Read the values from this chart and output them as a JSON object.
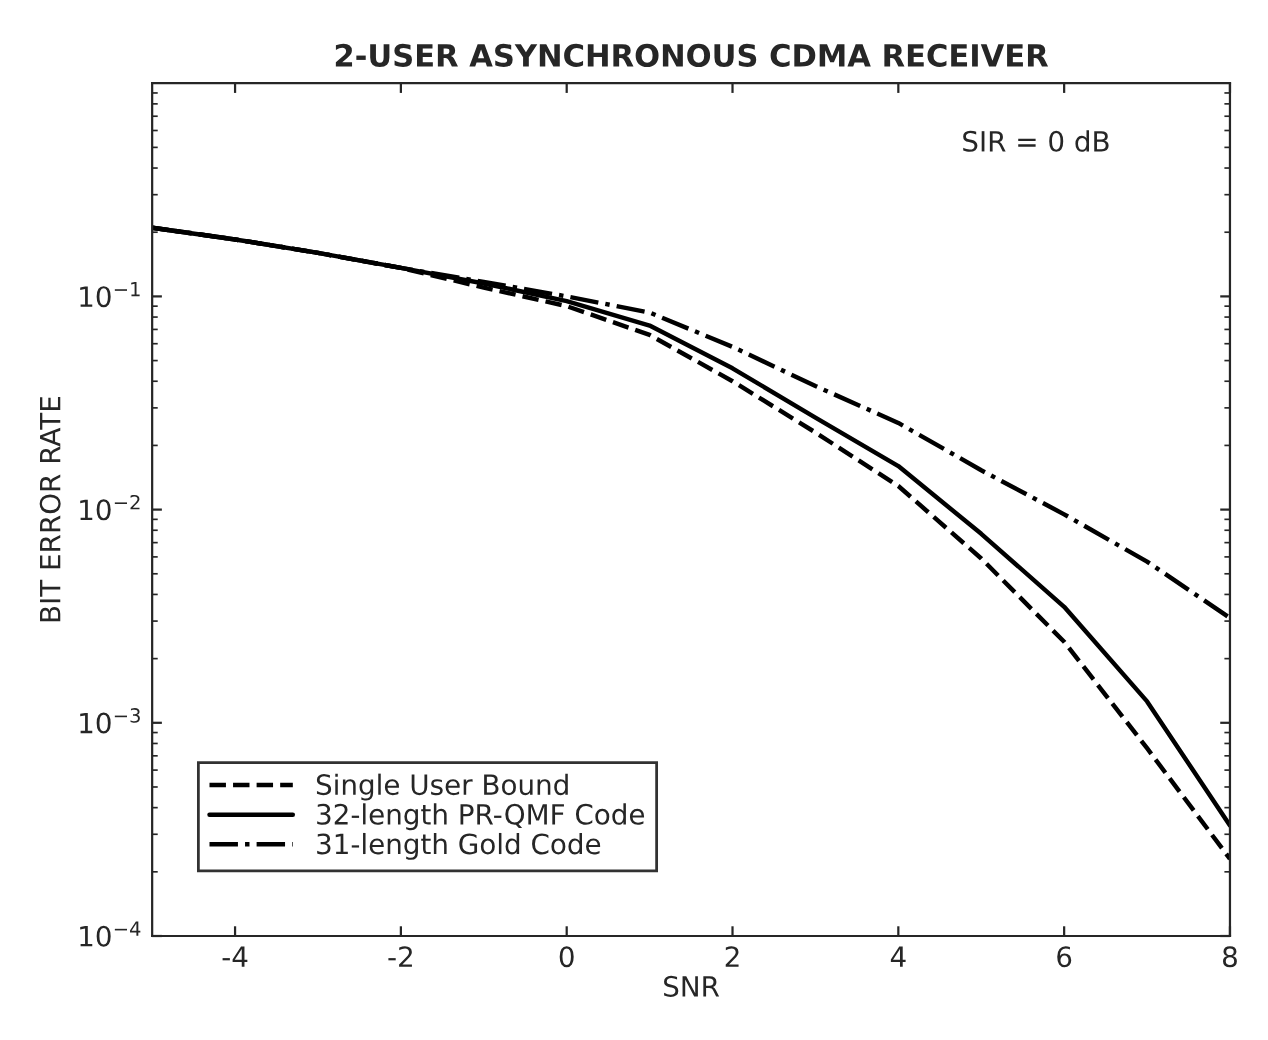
{
  "chart_data": {
    "type": "line",
    "title": "2-USER ASYNCHRONOUS CDMA RECEIVER",
    "xlabel": "SNR",
    "ylabel": "BIT ERROR RATE",
    "x": [
      -5,
      -4,
      -3,
      -2,
      -1,
      0,
      1,
      2,
      3,
      4,
      5,
      6,
      7,
      8
    ],
    "series": [
      {
        "name": "Single User Bound",
        "color": "#000000",
        "line_style": "dashed",
        "values": [
          0.21,
          0.185,
          0.16,
          0.136,
          0.11,
          0.09,
          0.066,
          0.04,
          0.023,
          0.0129,
          0.0059,
          0.0024,
          0.00076,
          0.00023
        ]
      },
      {
        "name": "32-length PR-QMF Code",
        "color": "#000000",
        "line_style": "solid",
        "values": [
          0.21,
          0.185,
          0.16,
          0.136,
          0.115,
          0.095,
          0.073,
          0.046,
          0.027,
          0.016,
          0.0077,
          0.0035,
          0.00126,
          0.00033
        ]
      },
      {
        "name": "31-length Gold Code",
        "color": "#000000",
        "line_style": "dashdot",
        "values": [
          0.21,
          0.185,
          0.16,
          0.136,
          0.117,
          0.1,
          0.084,
          0.058,
          0.038,
          0.0255,
          0.0153,
          0.0095,
          0.0057,
          0.0031
        ]
      }
    ],
    "annotations": [
      "SIR = 0 dB"
    ],
    "log": "y",
    "xlim": [
      -5,
      8
    ],
    "ylim": [
      0.0001,
      1
    ],
    "xticks": [
      -4,
      -2,
      0,
      2,
      4,
      6,
      8
    ],
    "yticks": [
      {
        "value": 0.0001,
        "label": "10$^{−4}$"
      },
      {
        "value": 0.001,
        "label": "10$^{−3}$"
      },
      {
        "value": 0.01,
        "label": "10$^{−2}$"
      },
      {
        "value": 0.1,
        "label": "10$^{−1}$"
      }
    ],
    "grid": false,
    "legend": "bottom left"
  }
}
